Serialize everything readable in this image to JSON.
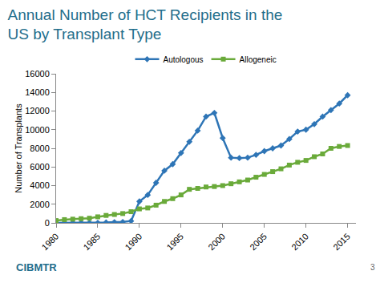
{
  "chart_data": {
    "type": "line",
    "title": "Annual Number of HCT Recipients in the US by Transplant Type",
    "y_label": "Number of Transplants",
    "x": [
      1980,
      1981,
      1982,
      1983,
      1984,
      1985,
      1986,
      1987,
      1988,
      1989,
      1990,
      1991,
      1992,
      1993,
      1994,
      1995,
      1996,
      1997,
      1998,
      1999,
      2000,
      2001,
      2002,
      2003,
      2004,
      2005,
      2006,
      2007,
      2008,
      2009,
      2010,
      2011,
      2012,
      2013,
      2014,
      2015
    ],
    "series": [
      {
        "name": "Autologous",
        "color": "#2e75b6",
        "marker": "diamond",
        "values": [
          0,
          0,
          0,
          0,
          0,
          0,
          50,
          80,
          100,
          200,
          2300,
          3000,
          4300,
          5600,
          6300,
          7500,
          8700,
          9900,
          11400,
          11800,
          9100,
          7000,
          6950,
          7000,
          7300,
          7700,
          8000,
          8300,
          9000,
          9800,
          10000,
          10600,
          11400,
          12100,
          12800,
          13700
        ]
      },
      {
        "name": "Allogeneic",
        "color": "#6aaa3a",
        "marker": "square",
        "values": [
          250,
          350,
          400,
          450,
          500,
          650,
          800,
          900,
          1000,
          1200,
          1500,
          1600,
          1900,
          2300,
          2600,
          3000,
          3600,
          3700,
          3850,
          3900,
          4000,
          4200,
          4400,
          4600,
          4900,
          5200,
          5500,
          5800,
          6200,
          6500,
          6700,
          7100,
          7400,
          8000,
          8200,
          8300
        ]
      }
    ],
    "xlim": [
      1980,
      2016
    ],
    "xticks": [
      1980,
      1985,
      1990,
      1995,
      2000,
      2005,
      2010,
      2015
    ],
    "ylim": [
      0,
      16000
    ],
    "yticks": [
      0,
      2000,
      4000,
      6000,
      8000,
      10000,
      12000,
      14000,
      16000
    ],
    "grid": false,
    "legend": "top",
    "annotations": [
      "CIBMTR",
      "3"
    ]
  }
}
